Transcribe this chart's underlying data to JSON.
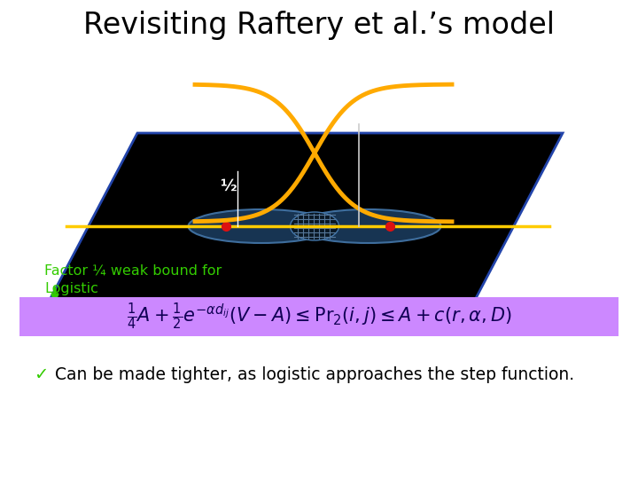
{
  "title": "Revisiting Raftery et al.’s model",
  "title_fontsize": 24,
  "title_fontweight": "normal",
  "bg_color": "#ffffff",
  "half_label": "½",
  "factor_text": "Factor ¼ weak bound for\nLogistic",
  "factor_color": "#33cc00",
  "formula_bg": "#cc88ff",
  "formula_text": "$\\frac{1}{4}A + \\frac{1}{2}e^{-\\alpha d_{ij}}(V - A) \\leq \\mathrm{Pr}_2(i,j) \\leq A + c(r, \\alpha, D)$",
  "checkmark_color": "#33cc00",
  "body_color": "#000000",
  "arrow_color": "#33cc00",
  "curve_color": "#ffaa00",
  "line_color": "#ffcc00",
  "ellipse_face": "#1a3a5c",
  "ellipse_edge": "#4477aa",
  "para_face": "#000000",
  "para_edge": "#2244aa"
}
